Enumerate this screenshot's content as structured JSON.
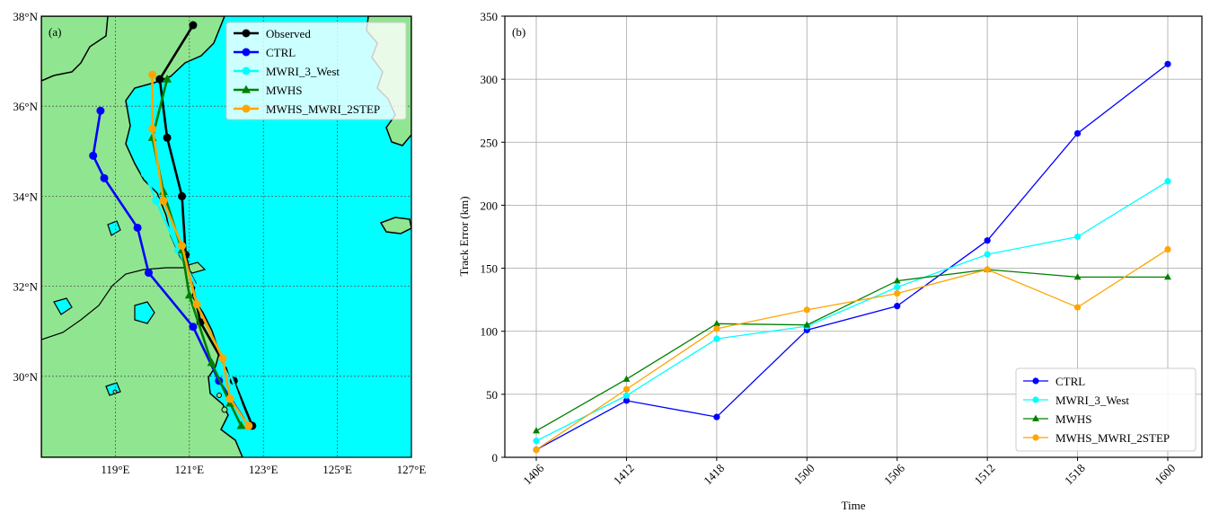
{
  "colors": {
    "land": "#90e690",
    "sea": "#00ffff",
    "coast": "#000000",
    "Observed": "#000000",
    "CTRL": "#0000ff",
    "MWRI_3_West": "#00ffff",
    "MWHS": "#008000",
    "MWHS_MWRI_2STEP": "#ffa500",
    "grid": "#b0b0b0"
  },
  "chart_data": [
    {
      "type": "map-track",
      "panel_label": "(a)",
      "xlim": [
        117,
        127
      ],
      "ylim": [
        28.2,
        38
      ],
      "xticks": [
        119,
        121,
        123,
        125,
        127
      ],
      "xtick_labels": [
        "119°E",
        "121°E",
        "123°E",
        "125°E",
        "127°E"
      ],
      "yticks": [
        30,
        32,
        34,
        36,
        38
      ],
      "ytick_labels": [
        "30°N",
        "32°N",
        "34°N",
        "36°N",
        "38°N"
      ],
      "grid": true,
      "legend_position": "top-right",
      "series": [
        {
          "name": "Observed",
          "marker": "circle",
          "lon": [
            122.7,
            122.2,
            121.3,
            120.9,
            120.8,
            120.4,
            120.2,
            121.1
          ],
          "lat": [
            28.9,
            29.9,
            31.2,
            32.7,
            34.0,
            35.3,
            36.6,
            37.8
          ]
        },
        {
          "name": "CTRL",
          "marker": "circle",
          "lon": [
            122.6,
            121.8,
            121.1,
            119.9,
            119.6,
            118.7,
            118.4,
            118.6
          ],
          "lat": [
            28.9,
            29.9,
            31.1,
            32.3,
            33.3,
            34.4,
            34.9,
            35.9
          ]
        },
        {
          "name": "MWRI_3_West",
          "marker": "circle",
          "lon": [
            122.6,
            122.0,
            121.3,
            120.7,
            120.1,
            119.8,
            119.7
          ],
          "lat": [
            28.9,
            30.3,
            31.8,
            32.8,
            33.9,
            34.5,
            36.3
          ]
        },
        {
          "name": "MWHS",
          "marker": "triangle",
          "lon": [
            122.4,
            122.1,
            121.6,
            121.0,
            120.8,
            120.3,
            120.0,
            120.4
          ],
          "lat": [
            28.9,
            29.4,
            30.3,
            31.8,
            32.8,
            34.1,
            35.3,
            36.6
          ]
        },
        {
          "name": "MWHS_MWRI_2STEP",
          "marker": "circle",
          "lon": [
            122.6,
            122.1,
            121.9,
            121.2,
            120.8,
            120.3,
            120.0,
            120.0
          ],
          "lat": [
            28.9,
            29.5,
            30.4,
            31.6,
            32.9,
            33.9,
            35.5,
            36.7
          ]
        }
      ]
    },
    {
      "type": "line",
      "panel_label": "(b)",
      "xlabel": "Time",
      "ylabel": "Track Error (km)",
      "categories": [
        "1406",
        "1412",
        "1418",
        "1500",
        "1506",
        "1512",
        "1518",
        "1600"
      ],
      "ylim": [
        0,
        350
      ],
      "yticks": [
        0,
        50,
        100,
        150,
        200,
        250,
        300,
        350
      ],
      "grid": true,
      "legend_position": "bottom-right",
      "series": [
        {
          "name": "CTRL",
          "marker": "circle",
          "values": [
            6,
            45,
            32,
            101,
            120,
            172,
            257,
            312
          ]
        },
        {
          "name": "MWRI_3_West",
          "marker": "circle",
          "values": [
            13,
            49,
            94,
            104,
            135,
            161,
            175,
            219
          ]
        },
        {
          "name": "MWHS",
          "marker": "triangle",
          "values": [
            21,
            62,
            106,
            105,
            140,
            149,
            143,
            143
          ]
        },
        {
          "name": "MWHS_MWRI_2STEP",
          "marker": "circle",
          "values": [
            6,
            54,
            102,
            117,
            130,
            149,
            119,
            165
          ]
        }
      ]
    }
  ]
}
